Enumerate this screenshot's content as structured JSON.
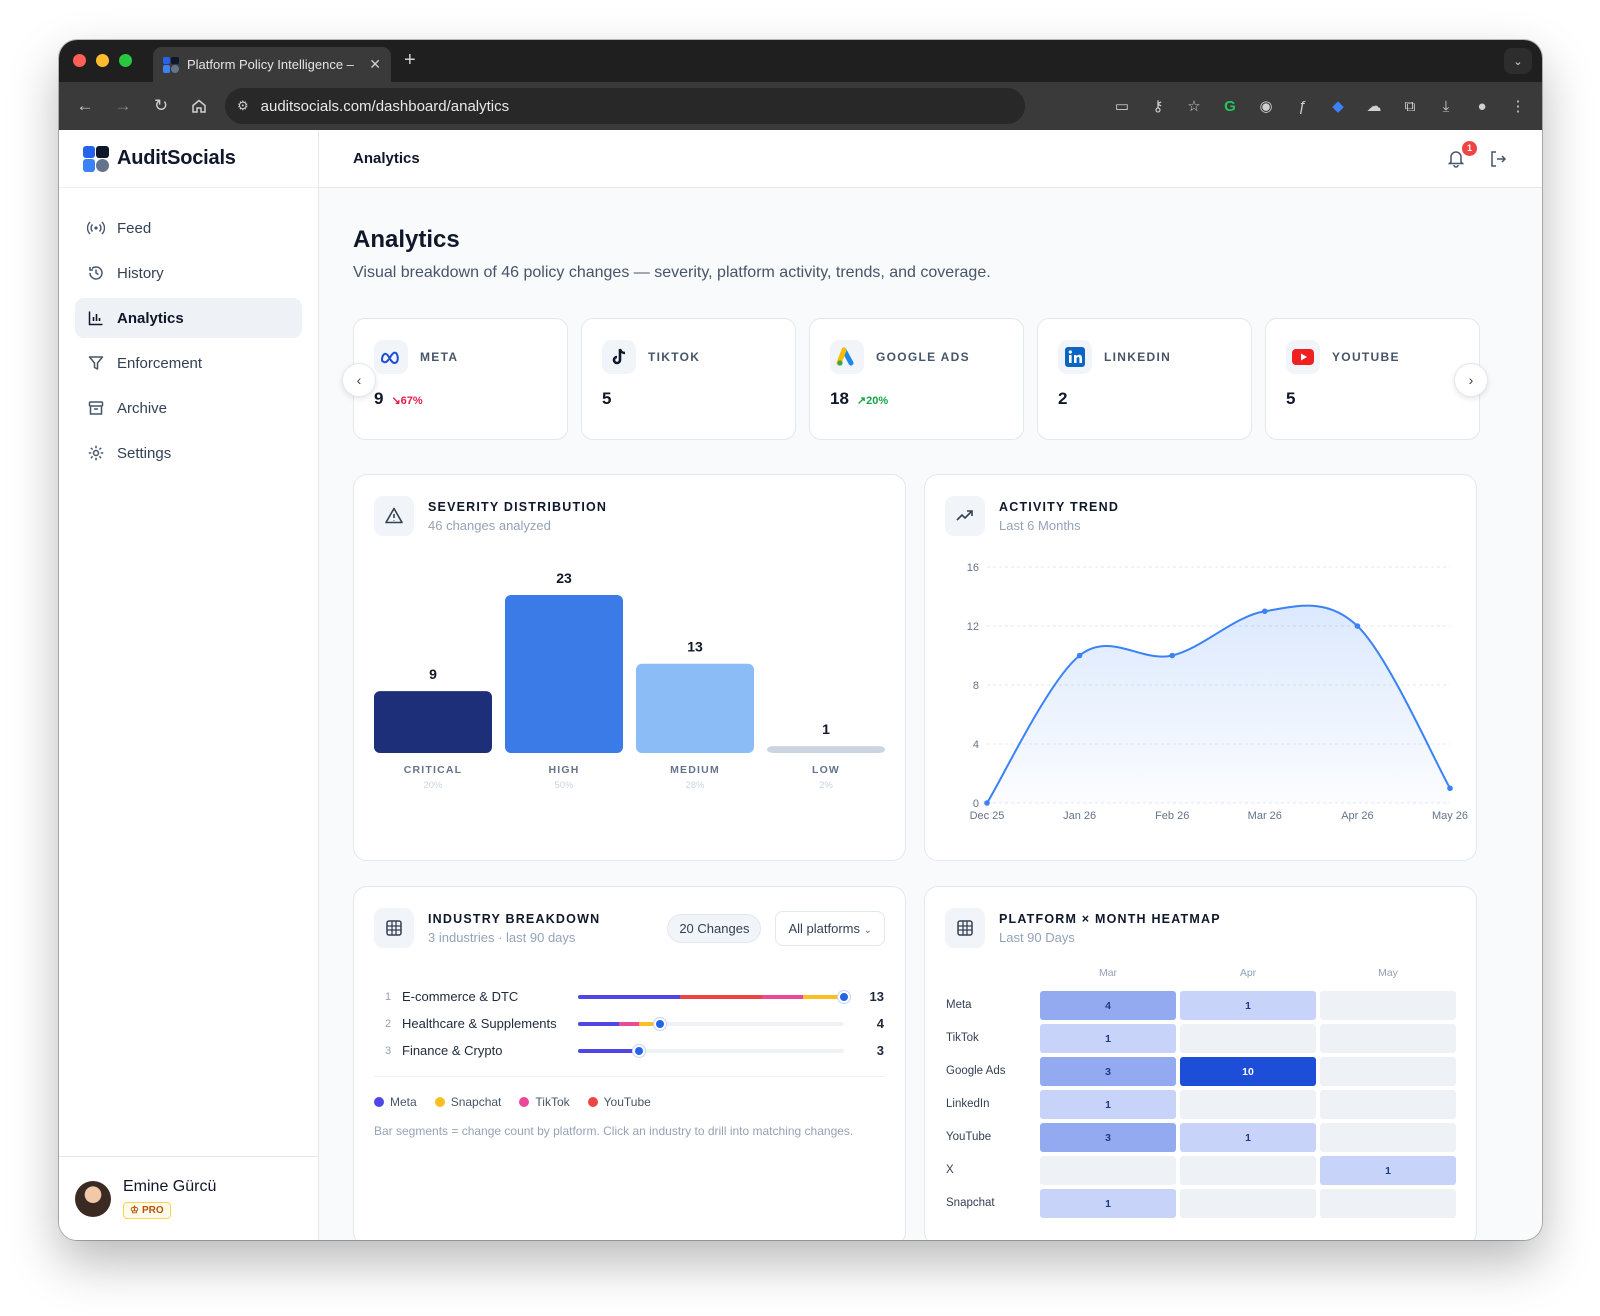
{
  "browser": {
    "tab_title": "Platform Policy Intelligence –",
    "url": "auditsocials.com/dashboard/analytics"
  },
  "app": {
    "brand": "AuditSocials",
    "topbar_title": "Analytics",
    "notification_count": "1"
  },
  "sidebar": {
    "items": [
      {
        "label": "Feed",
        "icon": "broadcast-icon",
        "active": false
      },
      {
        "label": "History",
        "icon": "history-icon",
        "active": false
      },
      {
        "label": "Analytics",
        "icon": "bar-chart-icon",
        "active": true
      },
      {
        "label": "Enforcement",
        "icon": "filter-icon",
        "active": false
      },
      {
        "label": "Archive",
        "icon": "archive-icon",
        "active": false
      },
      {
        "label": "Settings",
        "icon": "gear-icon",
        "active": false
      }
    ],
    "user": {
      "name": "Emine Gürcü",
      "plan": "PRO"
    }
  },
  "page": {
    "title": "Analytics",
    "subtitle": "Visual breakdown of 46 policy changes — severity, platform activity, trends, and coverage."
  },
  "platforms": [
    {
      "name": "META",
      "count": "9",
      "change": "↘67%",
      "direction": "down",
      "icon": "meta-icon"
    },
    {
      "name": "TIKTOK",
      "count": "5",
      "change": "",
      "direction": "none",
      "icon": "tiktok-icon"
    },
    {
      "name": "GOOGLE ADS",
      "count": "18",
      "change": "↗20%",
      "direction": "up",
      "icon": "google-ads-icon"
    },
    {
      "name": "LINKEDIN",
      "count": "2",
      "change": "",
      "direction": "none",
      "icon": "linkedin-icon"
    },
    {
      "name": "YOUTUBE",
      "count": "5",
      "change": "",
      "direction": "none",
      "icon": "youtube-icon"
    }
  ],
  "severity": {
    "title": "SEVERITY DISTRIBUTION",
    "subtitle": "46 changes analyzed"
  },
  "activity": {
    "title": "ACTIVITY TREND",
    "subtitle": "Last 6 Months"
  },
  "industry": {
    "title": "INDUSTRY BREAKDOWN",
    "subtitle": "3 industries · last 90 days",
    "changes_pill": "20 Changes",
    "platform_select": "All platforms",
    "rows": [
      {
        "rank": "1",
        "name": "E-commerce & DTC",
        "count": "13",
        "segments": [
          {
            "platform": "Meta",
            "value": 5
          },
          {
            "platform": "YouTube",
            "value": 4
          },
          {
            "platform": "TikTok",
            "value": 2
          },
          {
            "platform": "Snapchat",
            "value": 2
          }
        ]
      },
      {
        "rank": "2",
        "name": "Healthcare & Supplements",
        "count": "4",
        "segments": [
          {
            "platform": "Meta",
            "value": 2
          },
          {
            "platform": "TikTok",
            "value": 1
          },
          {
            "platform": "Snapchat",
            "value": 1
          }
        ]
      },
      {
        "rank": "3",
        "name": "Finance & Crypto",
        "count": "3",
        "segments": [
          {
            "platform": "Meta",
            "value": 3
          }
        ]
      }
    ],
    "legend": [
      {
        "name": "Meta",
        "color": "#4f46e5"
      },
      {
        "name": "Snapchat",
        "color": "#fbbf24"
      },
      {
        "name": "TikTok",
        "color": "#ec4899"
      },
      {
        "name": "YouTube",
        "color": "#ef4444"
      }
    ],
    "note": "Bar segments = change count by platform. Click an industry to drill into matching changes."
  },
  "heatmap": {
    "title": "PLATFORM × MONTH HEATMAP",
    "subtitle": "Last 90 Days",
    "months": [
      "Mar",
      "Apr",
      "May"
    ],
    "rows": [
      {
        "platform": "Meta",
        "values": [
          4,
          1,
          0
        ]
      },
      {
        "platform": "TikTok",
        "values": [
          1,
          0,
          0
        ]
      },
      {
        "platform": "Google Ads",
        "values": [
          3,
          10,
          0
        ]
      },
      {
        "platform": "LinkedIn",
        "values": [
          1,
          0,
          0
        ]
      },
      {
        "platform": "YouTube",
        "values": [
          3,
          1,
          0
        ]
      },
      {
        "platform": "X",
        "values": [
          0,
          0,
          1
        ]
      },
      {
        "platform": "Snapchat",
        "values": [
          1,
          0,
          0
        ]
      }
    ]
  },
  "chart_data": [
    {
      "type": "bar",
      "title": "SEVERITY DISTRIBUTION",
      "categories": [
        "CRITICAL",
        "HIGH",
        "MEDIUM",
        "LOW"
      ],
      "values": [
        9,
        23,
        13,
        1
      ],
      "percent_labels": [
        "20%",
        "50%",
        "28%",
        "2%"
      ],
      "colors": [
        "#1e2f7a",
        "#3b7be8",
        "#8bbcf5",
        "#cbd5e1"
      ]
    },
    {
      "type": "area",
      "title": "ACTIVITY TREND",
      "x": [
        "Dec 25",
        "Jan 26",
        "Feb 26",
        "Mar 26",
        "Apr 26",
        "May 26"
      ],
      "values": [
        0,
        10,
        10,
        13,
        12,
        1
      ],
      "ylim": [
        0,
        16
      ],
      "yticks": [
        0,
        4,
        8,
        12,
        16
      ],
      "grid": true,
      "color": "#3b82f6"
    }
  ]
}
